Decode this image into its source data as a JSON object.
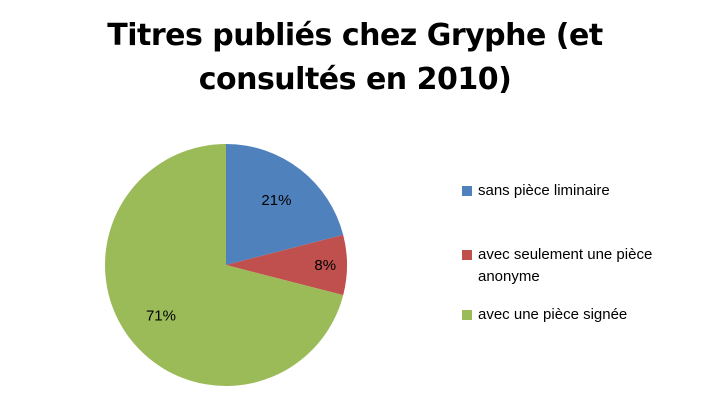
{
  "chart_data": {
    "type": "pie",
    "title": "Titres publiés chez Gryphe (et consultés en 2010)",
    "slices": [
      {
        "label": "sans pièce liminaire",
        "value": 21,
        "display": "21%",
        "color": "#4f81bd"
      },
      {
        "label": "avec seulement une pièce anonyme",
        "value": 8,
        "display": "8%",
        "color": "#c0504d"
      },
      {
        "label": "avec une pièce signée",
        "value": 71,
        "display": "71%",
        "color": "#9bbb59"
      }
    ],
    "start_angle": "12 o'clock",
    "direction": "clockwise",
    "legend_position": "right"
  }
}
